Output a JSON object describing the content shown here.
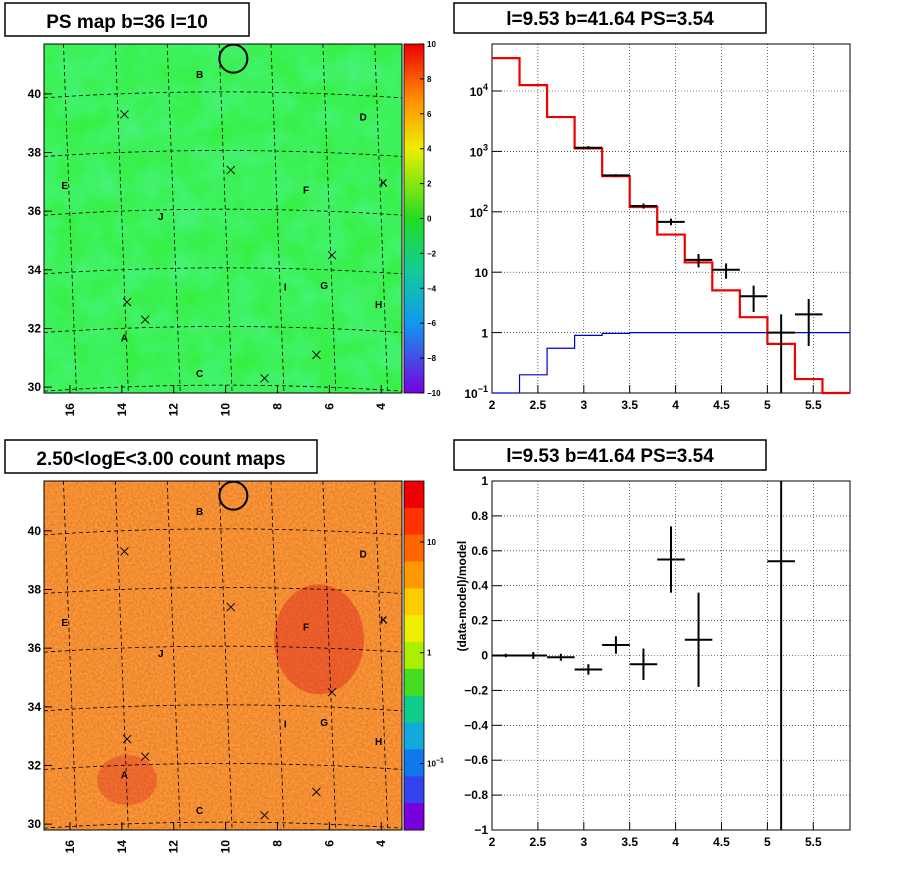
{
  "chart_data": [
    {
      "type": "heatmap",
      "title": "PS map b=36 l=10",
      "x_ticks": [
        "16",
        "14",
        "12",
        "10",
        "8",
        "6",
        "4"
      ],
      "y_ticks": [
        "30",
        "32",
        "34",
        "36",
        "38",
        "40"
      ],
      "xlim": [
        17,
        3.2
      ],
      "ylim": [
        29.8,
        41.7
      ],
      "colorbar": {
        "min": -10,
        "max": 10,
        "ticks": [
          "10",
          "8",
          "6",
          "4",
          "2",
          "0",
          "−2",
          "−4",
          "−6",
          "−8",
          "−10"
        ]
      },
      "dominant_color": "#33ee33",
      "source_labels": [
        {
          "text": "B",
          "x": 11.0,
          "y": 40.65
        },
        {
          "text": "D",
          "x": 4.7,
          "y": 39.2
        },
        {
          "text": "E",
          "x": 16.2,
          "y": 36.85
        },
        {
          "text": "K",
          "x": 3.9,
          "y": 36.95
        },
        {
          "text": "F",
          "x": 6.9,
          "y": 36.7
        },
        {
          "text": "J",
          "x": 12.5,
          "y": 35.8
        },
        {
          "text": "I",
          "x": 7.7,
          "y": 33.4
        },
        {
          "text": "G",
          "x": 6.2,
          "y": 33.45
        },
        {
          "text": "H",
          "x": 4.1,
          "y": 32.8
        },
        {
          "text": "A",
          "x": 13.9,
          "y": 31.65
        },
        {
          "text": "C",
          "x": 11.0,
          "y": 30.45
        }
      ],
      "cross_markers": [
        {
          "x": 13.9,
          "y": 39.3
        },
        {
          "x": 9.8,
          "y": 37.4
        },
        {
          "x": 5.9,
          "y": 34.5
        },
        {
          "x": 13.8,
          "y": 32.9
        },
        {
          "x": 13.1,
          "y": 32.3
        },
        {
          "x": 6.5,
          "y": 31.1
        },
        {
          "x": 8.5,
          "y": 30.3
        }
      ],
      "circle": {
        "x": 9.7,
        "y": 41.2
      }
    },
    {
      "type": "line",
      "title": "l=9.53 b=41.64 PS=3.54",
      "xlim": [
        2.0,
        5.9
      ],
      "ylim": [
        0.1,
        60000
      ],
      "y_scale": "log",
      "x_ticks": [
        "2",
        "2.5",
        "3",
        "3.5",
        "4",
        "4.5",
        "5",
        "5.5"
      ],
      "y_ticks": [
        {
          "value": 0.1,
          "base": "10",
          "exp": "−1"
        },
        {
          "value": 1,
          "base": "1",
          "exp": ""
        },
        {
          "value": 10,
          "base": "10",
          "exp": ""
        },
        {
          "value": 100,
          "base": "10",
          "exp": "2"
        },
        {
          "value": 1000,
          "base": "10",
          "exp": "3"
        },
        {
          "value": 10000,
          "base": "10",
          "exp": "4"
        }
      ],
      "series": [
        {
          "color": "#ee0000",
          "edges": [
            2.0,
            2.3,
            2.6,
            2.9,
            3.2,
            3.5,
            3.8,
            4.1,
            4.4,
            4.7,
            5.0,
            5.3,
            5.6,
            5.9
          ],
          "values": [
            35000,
            12500,
            3700,
            1120,
            390,
            120,
            42,
            14.5,
            5,
            1.8,
            0.65,
            0.17,
            0.05
          ]
        },
        {
          "color": "#0000cc",
          "edges": [
            2.0,
            2.3,
            2.6,
            2.9,
            3.2,
            3.5,
            3.8,
            4.1,
            4.4,
            4.7,
            5.0,
            5.3,
            5.6,
            5.9
          ],
          "values": [
            0.1,
            0.2,
            0.55,
            0.9,
            0.97,
            1.0,
            1.0,
            1.0,
            1.0,
            1.0,
            1.0,
            1.0,
            1.0
          ]
        }
      ],
      "points": [
        {
          "x": 3.05,
          "y": 1150,
          "xerr": 0.15,
          "ylo": 1080,
          "yhi": 1220
        },
        {
          "x": 3.35,
          "y": 400,
          "xerr": 0.15,
          "ylo": 380,
          "yhi": 420
        },
        {
          "x": 3.65,
          "y": 125,
          "xerr": 0.15,
          "ylo": 113,
          "yhi": 137
        },
        {
          "x": 3.95,
          "y": 68,
          "xerr": 0.15,
          "ylo": 60,
          "yhi": 77
        },
        {
          "x": 4.25,
          "y": 16,
          "xerr": 0.15,
          "ylo": 12,
          "yhi": 20
        },
        {
          "x": 4.55,
          "y": 11,
          "xerr": 0.15,
          "ylo": 7.8,
          "yhi": 14
        },
        {
          "x": 4.85,
          "y": 4,
          "xerr": 0.15,
          "ylo": 2.2,
          "yhi": 6
        },
        {
          "x": 5.15,
          "y": 1,
          "xerr": 0.15,
          "ylo": 0.1,
          "yhi": 2
        },
        {
          "x": 5.45,
          "y": 2,
          "xerr": 0.15,
          "ylo": 0.6,
          "yhi": 3.6
        }
      ]
    },
    {
      "type": "heatmap",
      "title": "2.50<logE<3.00 count maps",
      "x_ticks": [
        "16",
        "14",
        "12",
        "10",
        "8",
        "6",
        "4"
      ],
      "y_ticks": [
        "30",
        "32",
        "34",
        "36",
        "38",
        "40"
      ],
      "xlim": [
        17,
        3.2
      ],
      "ylim": [
        29.8,
        41.7
      ],
      "colorbar": {
        "scale": "log",
        "ticks": [
          {
            "value": 10,
            "base": "10",
            "exp": ""
          },
          {
            "value": 1,
            "base": "1",
            "exp": ""
          },
          {
            "value": 0.1,
            "base": "10",
            "exp": "−1"
          }
        ]
      },
      "dominant_color": "#ee6a22",
      "source_labels": [
        {
          "text": "B",
          "x": 11.0,
          "y": 40.65
        },
        {
          "text": "D",
          "x": 4.7,
          "y": 39.2
        },
        {
          "text": "E",
          "x": 16.2,
          "y": 36.85
        },
        {
          "text": "K",
          "x": 3.9,
          "y": 36.95
        },
        {
          "text": "F",
          "x": 6.9,
          "y": 36.7
        },
        {
          "text": "J",
          "x": 12.5,
          "y": 35.8
        },
        {
          "text": "I",
          "x": 7.7,
          "y": 33.4
        },
        {
          "text": "G",
          "x": 6.2,
          "y": 33.45
        },
        {
          "text": "H",
          "x": 4.1,
          "y": 32.8
        },
        {
          "text": "A",
          "x": 13.9,
          "y": 31.65
        },
        {
          "text": "C",
          "x": 11.0,
          "y": 30.45
        }
      ],
      "cross_markers": [
        {
          "x": 13.9,
          "y": 39.3
        },
        {
          "x": 9.8,
          "y": 37.4
        },
        {
          "x": 5.9,
          "y": 34.5
        },
        {
          "x": 13.8,
          "y": 32.9
        },
        {
          "x": 13.1,
          "y": 32.3
        },
        {
          "x": 6.5,
          "y": 31.1
        },
        {
          "x": 8.5,
          "y": 30.3
        }
      ],
      "circle": {
        "x": 9.7,
        "y": 41.2
      }
    },
    {
      "type": "scatter",
      "title": "l=9.53 b=41.64 PS=3.54",
      "ylabel": "(data-model)/model",
      "xlim": [
        2.0,
        5.9
      ],
      "ylim": [
        -1,
        1
      ],
      "x_ticks": [
        "2",
        "2.5",
        "3",
        "3.5",
        "4",
        "4.5",
        "5",
        "5.5"
      ],
      "y_ticks": [
        "1",
        "0.8",
        "0.6",
        "0.4",
        "0.2",
        "0",
        "−0.2",
        "−0.4",
        "−0.6",
        "−0.8",
        "−1"
      ],
      "points": [
        {
          "x": 2.15,
          "y": 0.0,
          "xerr": 0.15,
          "ylo": -0.01,
          "yhi": 0.01
        },
        {
          "x": 2.45,
          "y": 0.0,
          "xerr": 0.15,
          "ylo": -0.02,
          "yhi": 0.02
        },
        {
          "x": 2.75,
          "y": -0.01,
          "xerr": 0.15,
          "ylo": -0.03,
          "yhi": 0.01
        },
        {
          "x": 3.05,
          "y": -0.08,
          "xerr": 0.15,
          "ylo": -0.11,
          "yhi": -0.05
        },
        {
          "x": 3.35,
          "y": 0.06,
          "xerr": 0.15,
          "ylo": 0.01,
          "yhi": 0.11
        },
        {
          "x": 3.65,
          "y": -0.05,
          "xerr": 0.15,
          "ylo": -0.14,
          "yhi": 0.04
        },
        {
          "x": 3.95,
          "y": 0.55,
          "xerr": 0.15,
          "ylo": 0.36,
          "yhi": 0.74
        },
        {
          "x": 4.25,
          "y": 0.09,
          "xerr": 0.15,
          "ylo": -0.18,
          "yhi": 0.36
        },
        {
          "x": 5.15,
          "y": 0.54,
          "xerr": 0.15,
          "ylo": -1.0,
          "yhi": 1.0
        }
      ]
    }
  ]
}
